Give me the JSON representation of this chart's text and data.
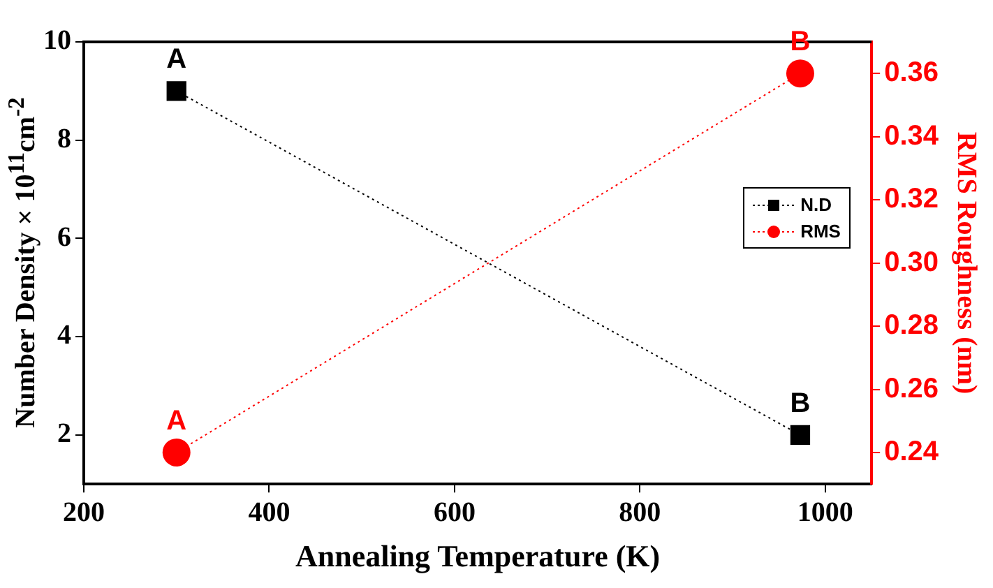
{
  "chart_data": {
    "type": "line",
    "xlabel": "Annealing Temperature (K)",
    "ylabel": "Number Density × 10$^{11}$cm$^{-2}$",
    "y2label": "RMS Roughness (nm)",
    "x": [
      300,
      973
    ],
    "series": [
      {
        "name": "N.D",
        "color": "#000000",
        "values": [
          9,
          2
        ],
        "marker": "square",
        "value_labels": [
          "A",
          "B"
        ]
      },
      {
        "name": "RMS",
        "color": "#ff0000",
        "values": [
          0.24,
          0.36
        ],
        "axis": "y2",
        "marker": "circle",
        "value_labels": [
          "A",
          "B"
        ]
      }
    ],
    "xlim": [
      200,
      1050
    ],
    "xticks": [
      200,
      400,
      600,
      800,
      1000
    ],
    "ylim": [
      1,
      10
    ],
    "yticks": [
      2,
      4,
      6,
      8,
      10
    ],
    "y2lim": [
      0.23,
      0.37
    ],
    "y2ticks": [
      0.24,
      0.26,
      0.28,
      {
        "value": 0.3,
        "label": "0.30"
      },
      0.32,
      0.34,
      0.36
    ],
    "line_style": "dotted",
    "grid": false,
    "legend": "right"
  }
}
